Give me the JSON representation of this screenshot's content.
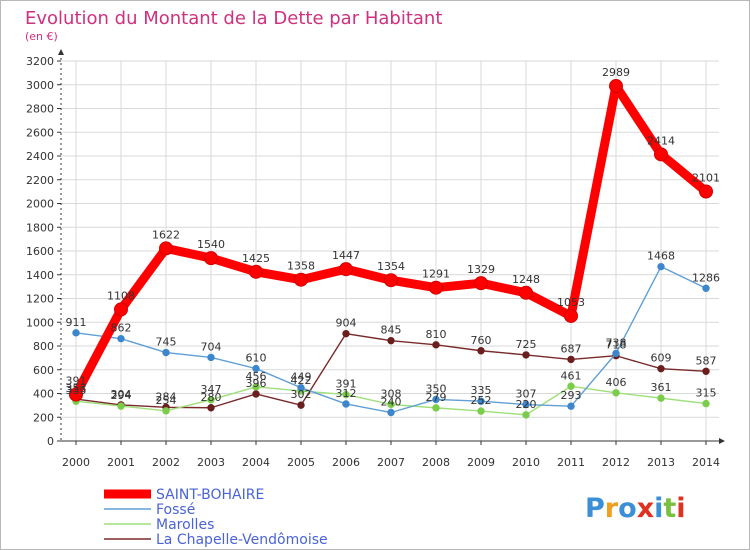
{
  "header": {
    "title": "Evolution du Montant de la Dette par Habitant",
    "subtitle": "(en €)"
  },
  "colors": {
    "title": "#d0307e",
    "axis": "#333333",
    "grid": "#d9d9d9"
  },
  "logo": {
    "letters": [
      "P",
      "r",
      "o",
      "x",
      "i",
      "t",
      "i"
    ],
    "colors": [
      "#3a8fd6",
      "#f0a020",
      "#3a8fd6",
      "#e03020",
      "#3a8fd6",
      "#7ac040",
      "#e03020"
    ]
  },
  "chart_data": {
    "type": "line",
    "title": "Evolution du Montant de la Dette par Habitant",
    "ylabel": "(en €)",
    "xlabel": "",
    "x": [
      "2000",
      "2001",
      "2002",
      "2003",
      "2004",
      "2005",
      "2006",
      "2007",
      "2008",
      "2009",
      "2010",
      "2011",
      "2012",
      "2013",
      "2014"
    ],
    "ylim": [
      0,
      3200
    ],
    "yticks": [
      0,
      200,
      400,
      600,
      800,
      1000,
      1200,
      1400,
      1600,
      1800,
      2000,
      2200,
      2400,
      2600,
      2800,
      3000,
      3200
    ],
    "grid": true,
    "legend_position": "bottom-left",
    "series": [
      {
        "name": "SAINT-BOHAIRE",
        "color": "#ff0000",
        "marker": "#e41212",
        "values": [
          391,
          1108,
          1622,
          1540,
          1425,
          1358,
          1447,
          1354,
          1291,
          1329,
          1248,
          1053,
          2989,
          2414,
          2101
        ]
      },
      {
        "name": "Fossé",
        "color": "#5f9fd6",
        "marker": "#3d86cc",
        "values": [
          911,
          862,
          745,
          704,
          610,
          449,
          312,
          240,
          350,
          335,
          307,
          293,
          738,
          1468,
          1286
        ]
      },
      {
        "name": "Marolles",
        "color": "#9ee07a",
        "marker": "#7acc4a",
        "values": [
          335,
          294,
          254,
          347,
          456,
          422,
          391,
          308,
          279,
          252,
          220,
          461,
          406,
          361,
          315
        ]
      },
      {
        "name": "La Chapelle-Vendômoise",
        "color": "#7a2a2a",
        "marker": "#6a1e1e",
        "values": [
          353,
          304,
          284,
          280,
          396,
          302,
          904,
          845,
          810,
          760,
          725,
          687,
          718,
          609,
          587
        ]
      }
    ]
  }
}
